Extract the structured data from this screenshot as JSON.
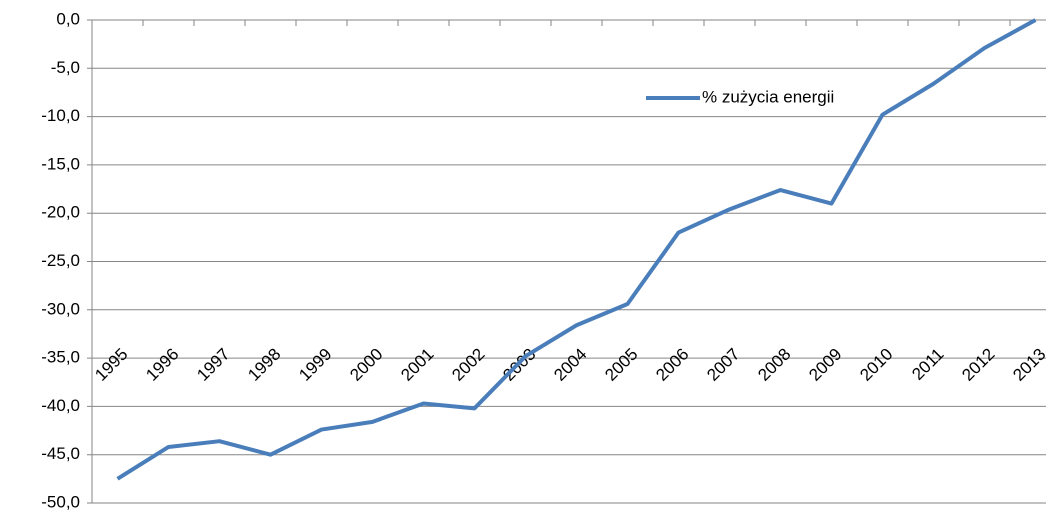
{
  "chart_data": {
    "type": "line",
    "categories": [
      "1995",
      "1996",
      "1997",
      "1998",
      "1999",
      "2000",
      "2001",
      "2002",
      "2003",
      "2004",
      "2005",
      "2006",
      "2007",
      "2008",
      "2009",
      "2010",
      "2011",
      "2012",
      "2013"
    ],
    "series": [
      {
        "name": "% zużycia energii",
        "color": "#4a7ebb",
        "values": [
          -47.5,
          -44.2,
          -43.6,
          -45.0,
          -42.4,
          -41.6,
          -39.7,
          -40.2,
          -34.8,
          -31.6,
          -29.4,
          -22.0,
          -19.6,
          -17.6,
          -19.0,
          -9.8,
          -6.6,
          -2.9,
          0.0
        ]
      }
    ],
    "ylim": [
      -50,
      0
    ],
    "yticks": [
      {
        "value": 0,
        "label": "0,0"
      },
      {
        "value": -5,
        "label": "-5,0"
      },
      {
        "value": -10,
        "label": "-10,0"
      },
      {
        "value": -15,
        "label": "-15,0"
      },
      {
        "value": -20,
        "label": "-20,0"
      },
      {
        "value": -25,
        "label": "-25,0"
      },
      {
        "value": -30,
        "label": "-30,0"
      },
      {
        "value": -35,
        "label": "-35,0"
      },
      {
        "value": -40,
        "label": "-40,0"
      },
      {
        "value": -45,
        "label": "-45,0"
      },
      {
        "value": -50,
        "label": "-50,0"
      }
    ],
    "grid": true,
    "legend": "top-right"
  }
}
